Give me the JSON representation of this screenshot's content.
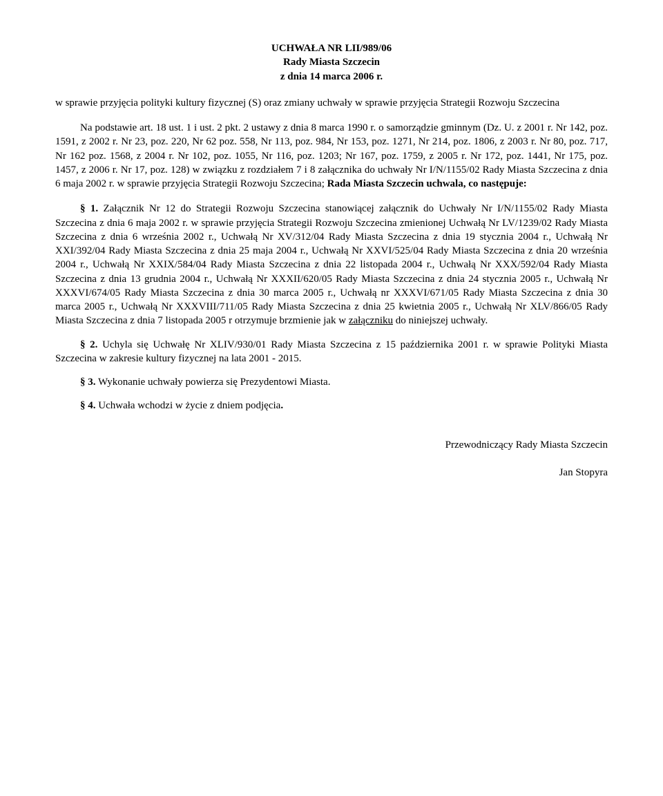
{
  "header": {
    "line1": "UCHWAŁA NR LII/989/06",
    "line2": "Rady Miasta Szczecin",
    "line3": "z dnia 14 marca 2006 r."
  },
  "subject": "w sprawie przyjęcia polityki kultury fizycznej (S) oraz zmiany uchwały w sprawie przyjęcia Strategii Rozwoju Szczecina",
  "body": {
    "lead_in": "Na podstawie art. 18 ust. 1 i ust. 2 pkt. 2 ustawy z dnia 8 marca 1990 r. o samorządzie gminnym (Dz. U. z 2001 r. Nr 142, poz. 1591, z 2002 r. Nr 23, poz. 220, Nr 62 poz. 558, Nr 113, poz. 984, Nr 153, poz. 1271, Nr 214, poz. 1806, z 2003 r. Nr 80, poz. 717, Nr 162 poz. 1568, z 2004 r. Nr 102, poz. 1055, Nr 116, poz. 1203; Nr 167, poz. 1759, z 2005 r. Nr 172, poz. 1441, Nr 175, poz. 1457, z 2006 r. Nr 17, poz. 128) w związku z rozdziałem 7 i 8 załącznika do uchwały Nr I/N/1155/02 Rady Miasta Szczecina z dnia 6 maja 2002 r. w sprawie przyjęcia Strategii Rozwoju Szczecina; ",
    "lead_in_bold": "Rada Miasta Szczecin uchwala, co następuje:"
  },
  "sections": {
    "s1": {
      "label": "§ 1.",
      "text_a": " Załącznik Nr 12 do Strategii Rozwoju Szczecina stanowiącej załącznik do Uchwały Nr I/N/1155/02 Rady Miasta Szczecina z dnia 6 maja 2002 r. w sprawie przyjęcia Strategii Rozwoju Szczecina zmienionej Uchwałą Nr LV/1239/02 Rady Miasta Szczecina z dnia 6 września 2002 r., Uchwałą Nr XV/312/04 Rady Miasta Szczecina z dnia 19 stycznia 2004 r., Uchwałą Nr XXI/392/04 Rady Miasta Szczecina z dnia 25 maja 2004 r., Uchwałą Nr XXVI/525/04 Rady Miasta Szczecina z dnia 20 września 2004 r., Uchwałą Nr XXIX/584/04 Rady Miasta Szczecina z dnia 22 listopada 2004 r., Uchwałą Nr XXX/592/04 Rady Miasta Szczecina z dnia 13 grudnia 2004 r., Uchwałą Nr XXXII/620/05 Rady Miasta Szczecina z dnia 24 stycznia 2005 r., Uchwałą Nr XXXVI/674/05 Rady Miasta Szczecina z dnia 30 marca 2005 r., Uchwałą nr XXXVI/671/05 Rady Miasta Szczecina z dnia 30 marca 2005 r., Uchwałą Nr XXXVIII/711/05 Rady Miasta Szczecina z dnia 25 kwietnia 2005 r., Uchwałą Nr XLV/866/05 Rady Miasta Szczecina z dnia 7 listopada 2005 r otrzymuje brzmienie jak w ",
      "underlined": "załączniku",
      "text_b": " do niniejszej uchwały."
    },
    "s2": {
      "label": "§ 2.",
      "text": " Uchyla się Uchwałę Nr XLIV/930/01 Rady Miasta Szczecina z 15 października 2001 r. w sprawie Polityki Miasta Szczecina w zakresie kultury fizycznej na lata 2001 - 2015."
    },
    "s3": {
      "label": "§ 3.",
      "text": " Wykonanie uchwały powierza się Prezydentowi Miasta."
    },
    "s4": {
      "label": "§ 4.",
      "text_a": " Uchwała wchodzi w życie z dniem podjęcia",
      "text_bold": "."
    }
  },
  "signature": {
    "title": "Przewodniczący Rady Miasta Szczecin",
    "name": "Jan Stopyra"
  }
}
